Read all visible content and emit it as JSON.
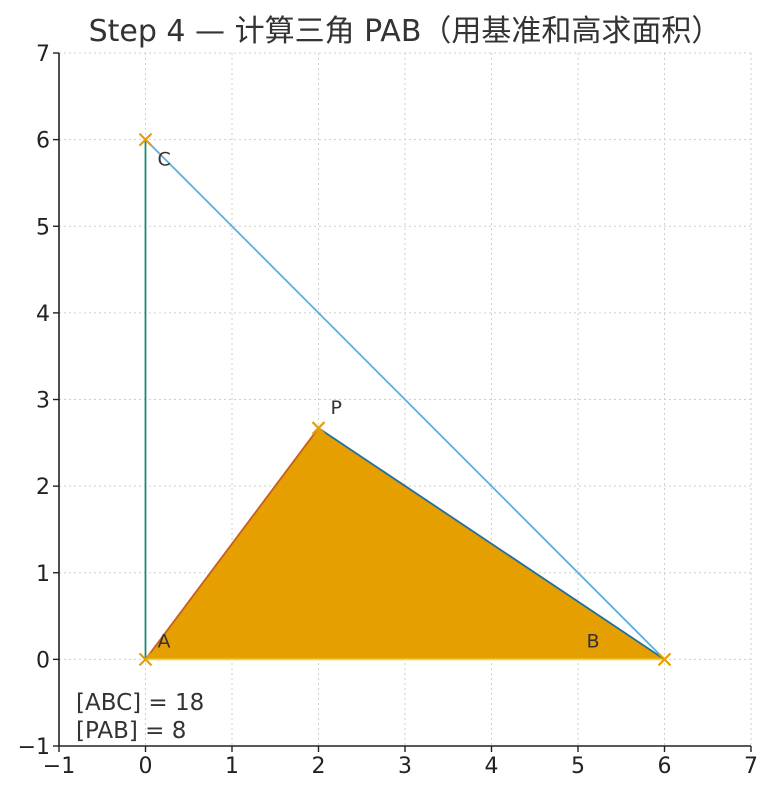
{
  "chart_data": {
    "type": "scatter",
    "title": "Step 4 — 计算三角 PAB（用基准和高求面积）",
    "xlabel": "",
    "ylabel": "",
    "xlim": [
      -1,
      7
    ],
    "ylim": [
      -1,
      7
    ],
    "xticks": [
      "−1",
      "0",
      "1",
      "2",
      "3",
      "4",
      "5",
      "6",
      "7"
    ],
    "yticks": [
      "−1",
      "0",
      "1",
      "2",
      "3",
      "4",
      "5",
      "6",
      "7"
    ],
    "grid": true,
    "points": [
      {
        "name": "A",
        "x": 0,
        "y": 0
      },
      {
        "name": "B",
        "x": 6,
        "y": 0
      },
      {
        "name": "C",
        "x": 0,
        "y": 6
      },
      {
        "name": "P",
        "x": 2,
        "y": 2.67
      }
    ],
    "segments": [
      {
        "from": "A",
        "to": "C",
        "color": "#1a8a72"
      },
      {
        "from": "C",
        "to": "B",
        "color": "#5ab0dc"
      },
      {
        "from": "A",
        "to": "B",
        "color": "#f1d23a"
      },
      {
        "from": "A",
        "to": "P",
        "color": "#c85f1a"
      },
      {
        "from": "P",
        "to": "B",
        "color": "#1f6f9f"
      }
    ],
    "filled_polygon": {
      "vertices": [
        "P",
        "A",
        "B"
      ],
      "color": "#e69f00"
    },
    "marker_color": "#e69f00",
    "annotations": [
      "[ABC] = 18",
      "[PAB] = 8"
    ]
  }
}
